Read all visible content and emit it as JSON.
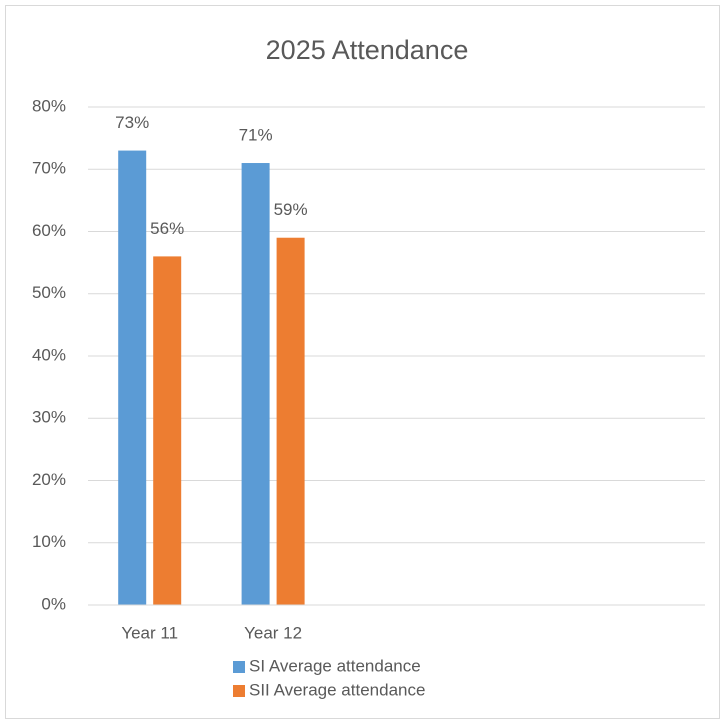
{
  "chart_data": {
    "type": "bar",
    "title": "2025 Attendance",
    "categories": [
      "Year 11",
      "Year 12",
      null,
      null,
      null
    ],
    "series": [
      {
        "name": "SI Average attendance",
        "color": "#5b9bd5",
        "values": [
          73,
          71,
          null,
          null,
          null
        ],
        "value_labels": [
          "73%",
          "71%",
          null,
          null,
          null
        ]
      },
      {
        "name": "SII Average attendance",
        "color": "#ed7d31",
        "values": [
          56,
          59,
          null,
          null,
          null
        ],
        "value_labels": [
          "56%",
          "59%",
          null,
          null,
          null
        ]
      }
    ],
    "ylim": [
      0,
      80
    ],
    "yticks": [
      {
        "value": 0,
        "label": "0%"
      },
      {
        "value": 10,
        "label": "10%"
      },
      {
        "value": 20,
        "label": "20%"
      },
      {
        "value": 30,
        "label": "30%"
      },
      {
        "value": 40,
        "label": "40%"
      },
      {
        "value": 50,
        "label": "50%"
      },
      {
        "value": 60,
        "label": "60%"
      },
      {
        "value": 70,
        "label": "70%"
      },
      {
        "value": 80,
        "label": "80%"
      }
    ],
    "grid": true,
    "legend": "bottom"
  }
}
